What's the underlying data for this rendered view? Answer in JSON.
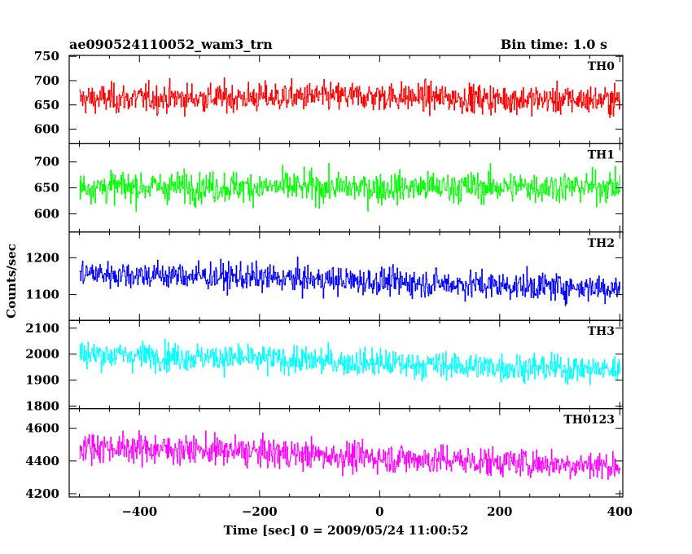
{
  "chart_data": {
    "type": "line",
    "title": "ae090524110052_wam3_trn",
    "bin_time_label": "Bin time: 1.0 s",
    "xlabel": "Time [sec] 0 = 2009/05/24 11:00:52",
    "ylabel": "Counts/sec",
    "xlim": [
      -517,
      405
    ],
    "x_ticks": [
      -400,
      -200,
      0,
      200,
      400
    ],
    "x_range_data": [
      -500,
      400
    ],
    "bin_time_s": 1.0,
    "grid": false,
    "panels": [
      {
        "name": "TH0",
        "color": "#ff0000",
        "ylim": [
          570,
          752
        ],
        "y_ticks": [
          600,
          650,
          700,
          750
        ],
        "trend": [
          [
            -500,
            662
          ],
          [
            -250,
            665
          ],
          [
            0,
            668
          ],
          [
            200,
            662
          ],
          [
            400,
            660
          ]
        ],
        "noise_amplitude": 38
      },
      {
        "name": "TH1",
        "color": "#00ff00",
        "ylim": [
          565,
          735
        ],
        "y_ticks": [
          600,
          650,
          700
        ],
        "trend": [
          [
            -500,
            652
          ],
          [
            -250,
            652
          ],
          [
            0,
            650
          ],
          [
            200,
            652
          ],
          [
            400,
            652
          ]
        ],
        "noise_amplitude": 38
      },
      {
        "name": "TH2",
        "color": "#0000ff",
        "ylim": [
          1030,
          1270
        ],
        "y_ticks": [
          1100,
          1200
        ],
        "trend": [
          [
            -500,
            1158
          ],
          [
            -250,
            1148
          ],
          [
            0,
            1135
          ],
          [
            200,
            1125
          ],
          [
            400,
            1118
          ]
        ],
        "noise_amplitude": 48
      },
      {
        "name": "TH3",
        "color": "#00ffff",
        "ylim": [
          1790,
          2130
        ],
        "y_ticks": [
          1800,
          1900,
          2000,
          2100
        ],
        "trend": [
          [
            -500,
            2000
          ],
          [
            -250,
            1985
          ],
          [
            0,
            1965
          ],
          [
            200,
            1950
          ],
          [
            400,
            1940
          ]
        ],
        "noise_amplitude": 68
      },
      {
        "name": "TH0123",
        "color": "#ff00ff",
        "ylim": [
          4180,
          4720
        ],
        "y_ticks": [
          4200,
          4400,
          4600
        ],
        "trend": [
          [
            -500,
            4490
          ],
          [
            -250,
            4460
          ],
          [
            0,
            4420
          ],
          [
            200,
            4395
          ],
          [
            400,
            4370
          ]
        ],
        "noise_amplitude": 115
      }
    ]
  }
}
